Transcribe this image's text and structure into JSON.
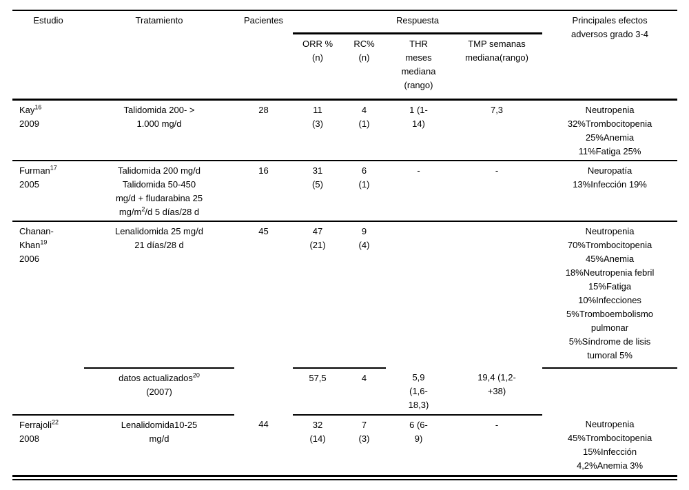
{
  "page": {
    "background_color": "#ffffff",
    "text_color": "#000000",
    "rule_color": "#000000"
  },
  "table": {
    "column_headers": {
      "estudio": "Estudio",
      "tratamiento": "Tratamiento",
      "pacientes": "Pacientes",
      "respuesta_group": "Respuesta",
      "orr": "ORR %\n(n)",
      "rc": "RC%\n(n)",
      "thr": "THR\nmeses\nmediana\n(rango)",
      "tmp": "TMP semanas\nmediana(rango)",
      "efectos_adversos": "Principales efectos\nadversos grado 3-4"
    },
    "rows": [
      {
        "study": "Kay^{16}\n2009",
        "treatment": "Talidomida 200- >\n1.000 mg/d",
        "patients": "28",
        "orr": "11\n(3)",
        "rc": "4\n(1)",
        "thr": "1 (1-\n14)",
        "tmp": "7,3",
        "adverse": "Neutropenia\n32%Trombocitopenia\n25%Anemia\n11%Fatiga 25%"
      },
      {
        "study": "Furman^{17}\n2005",
        "treatment": "Talidomida 200 mg/d\nTalidomida 50-450\nmg/d + fludarabina 25\nmg/m^{2}/d 5 días/28 d",
        "patients": "16",
        "orr": "31\n(5)",
        "rc": "6\n(1)",
        "thr": "-",
        "tmp": "-",
        "adverse": "Neuropatía\n13%Infección 19%"
      },
      {
        "study": "Chanan-\nKhan^{19}\n2006",
        "treatment": "Lenalidomida 25 mg/d\n21 días/28 d",
        "patients": "45",
        "orr": "47\n(21)",
        "rc": "9\n(4)",
        "thr": "",
        "tmp": "",
        "adverse": "Neutropenia\n70%Trombocitopenia\n45%Anemia\n18%Neutropenia febril\n15%Fatiga\n10%Infecciones\n5%Tromboembolismo\npulmonar\n5%Síndrome de lisis\ntumoral 5%"
      },
      {
        "study": "",
        "treatment": "datos actualizados^{20}\n(2007)",
        "patients": "",
        "orr": "57,5",
        "rc": "4",
        "thr": "5,9\n(1,6-\n18,3)",
        "tmp": "19,4 (1,2-\n+38)",
        "adverse": ""
      },
      {
        "study": "Ferrajoli^{22}\n2008",
        "treatment": "Lenalidomida10-25\nmg/d",
        "patients": "44",
        "orr": "32\n(14)",
        "rc": "7\n(3)",
        "thr": "6 (6-\n9)",
        "tmp": "-",
        "adverse": "Neutropenia\n45%Trombocitopenia\n15%Infección\n4,2%Anemia 3%"
      }
    ]
  }
}
